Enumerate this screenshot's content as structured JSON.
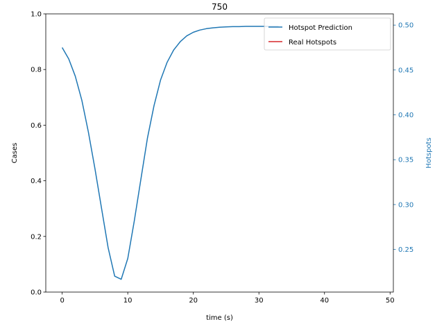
{
  "chart_data": {
    "type": "line",
    "title": "750",
    "xlabel": "time (s)",
    "ylabel": "Cases",
    "y2label": "Hotspots",
    "xlim": [
      -2.5,
      50.5
    ],
    "ylim": [
      0.0,
      1.0
    ],
    "y2lim": [
      0.2025,
      0.5125
    ],
    "xticks": [
      "0",
      "10",
      "20",
      "30",
      "40",
      "50"
    ],
    "yticks": [
      "0.0",
      "0.2",
      "0.4",
      "0.6",
      "0.8",
      "1.0"
    ],
    "y2ticks": [
      "0.25",
      "0.30",
      "0.35",
      "0.40",
      "0.45",
      "0.50"
    ],
    "grid": false,
    "legend_position": "top-right",
    "series": [
      {
        "name": "Hotspot Prediction",
        "color": "#1f77b4",
        "x": [
          0,
          1,
          2,
          3,
          4,
          5,
          6,
          7,
          8,
          9,
          10,
          11,
          12,
          13,
          14,
          15,
          16,
          17,
          18,
          19,
          20,
          21,
          22,
          23,
          24,
          25,
          26,
          27,
          28,
          29,
          30,
          31,
          32,
          33
        ],
        "y": [
          0.879,
          0.838,
          0.776,
          0.689,
          0.575,
          0.443,
          0.302,
          0.16,
          0.057,
          0.046,
          0.121,
          0.256,
          0.406,
          0.553,
          0.67,
          0.762,
          0.826,
          0.87,
          0.9,
          0.921,
          0.934,
          0.942,
          0.947,
          0.95,
          0.952,
          0.953,
          0.954,
          0.954,
          0.955,
          0.955,
          0.955,
          0.955,
          0.955,
          0.955
        ]
      },
      {
        "name": "Real Hotspots",
        "color": "#d62728",
        "x": [],
        "y": []
      }
    ]
  }
}
